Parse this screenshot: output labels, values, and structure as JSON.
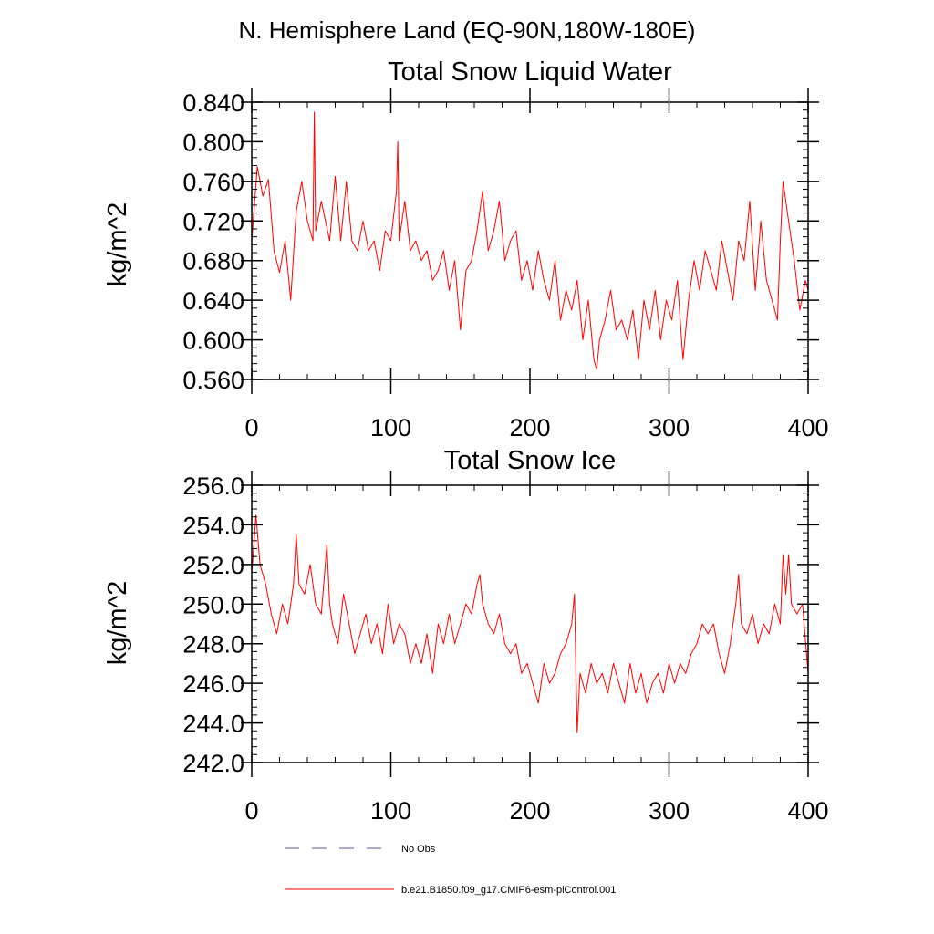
{
  "figure_title": "N. Hemisphere Land (EQ-90N,180W-180E)",
  "chart_data": [
    {
      "type": "line",
      "title": "Total Snow Liquid Water",
      "xlabel": "",
      "ylabel": "kg/m^2",
      "xlim": [
        0,
        400
      ],
      "ylim": [
        0.56,
        0.84
      ],
      "xticks": [
        0,
        100,
        200,
        300,
        400
      ],
      "yticks": [
        0.56,
        0.6,
        0.64,
        0.68,
        0.72,
        0.76,
        0.8,
        0.84
      ],
      "ytick_labels": [
        "0.560",
        "0.600",
        "0.640",
        "0.680",
        "0.720",
        "0.760",
        "0.800",
        "0.840"
      ],
      "series": [
        {
          "name": "b.e21.B1850.f09_g17.CMIP6-esm-piControl.001",
          "color": "#ff0000",
          "x": [
            0,
            4,
            8,
            12,
            16,
            20,
            24,
            28,
            32,
            36,
            40,
            44,
            45,
            46,
            50,
            56,
            60,
            64,
            68,
            72,
            76,
            80,
            84,
            88,
            92,
            96,
            100,
            104,
            105,
            106,
            110,
            114,
            118,
            122,
            126,
            130,
            134,
            138,
            142,
            146,
            150,
            154,
            158,
            162,
            166,
            170,
            174,
            178,
            182,
            186,
            190,
            194,
            198,
            202,
            206,
            210,
            214,
            218,
            222,
            226,
            230,
            234,
            238,
            242,
            246,
            248,
            250,
            254,
            258,
            262,
            266,
            270,
            274,
            278,
            282,
            286,
            290,
            294,
            298,
            302,
            306,
            310,
            314,
            318,
            322,
            326,
            330,
            334,
            338,
            342,
            346,
            350,
            354,
            358,
            362,
            366,
            370,
            374,
            378,
            380,
            382,
            386,
            390,
            394,
            398,
            400
          ],
          "values": [
            0.7,
            0.775,
            0.745,
            0.762,
            0.69,
            0.668,
            0.7,
            0.64,
            0.73,
            0.76,
            0.72,
            0.7,
            0.83,
            0.71,
            0.74,
            0.7,
            0.765,
            0.7,
            0.76,
            0.7,
            0.69,
            0.72,
            0.69,
            0.7,
            0.67,
            0.71,
            0.7,
            0.75,
            0.8,
            0.7,
            0.74,
            0.69,
            0.7,
            0.68,
            0.69,
            0.66,
            0.67,
            0.69,
            0.65,
            0.68,
            0.61,
            0.67,
            0.68,
            0.71,
            0.75,
            0.69,
            0.71,
            0.74,
            0.68,
            0.7,
            0.71,
            0.66,
            0.68,
            0.65,
            0.69,
            0.66,
            0.64,
            0.68,
            0.62,
            0.65,
            0.63,
            0.66,
            0.6,
            0.64,
            0.58,
            0.57,
            0.6,
            0.62,
            0.65,
            0.61,
            0.62,
            0.6,
            0.63,
            0.58,
            0.64,
            0.61,
            0.65,
            0.6,
            0.64,
            0.62,
            0.66,
            0.58,
            0.64,
            0.68,
            0.65,
            0.69,
            0.67,
            0.65,
            0.7,
            0.67,
            0.64,
            0.7,
            0.68,
            0.74,
            0.65,
            0.72,
            0.66,
            0.64,
            0.62,
            0.7,
            0.76,
            0.72,
            0.68,
            0.63,
            0.66,
            0.65
          ]
        }
      ]
    },
    {
      "type": "line",
      "title": "Total Snow Ice",
      "xlabel": "",
      "ylabel": "kg/m^2",
      "xlim": [
        0,
        400
      ],
      "ylim": [
        242.0,
        256.0
      ],
      "xticks": [
        0,
        100,
        200,
        300,
        400
      ],
      "yticks": [
        242,
        244,
        246,
        248,
        250,
        252,
        254,
        256
      ],
      "ytick_labels": [
        "242.0",
        "244.0",
        "246.0",
        "248.0",
        "250.0",
        "252.0",
        "254.0",
        "256.0"
      ],
      "series": [
        {
          "name": "b.e21.B1850.f09_g17.CMIP6-esm-piControl.001",
          "color": "#ff0000",
          "x": [
            0,
            3,
            6,
            10,
            14,
            18,
            22,
            26,
            30,
            32,
            34,
            38,
            42,
            46,
            50,
            54,
            56,
            58,
            62,
            66,
            70,
            74,
            78,
            82,
            86,
            90,
            94,
            98,
            102,
            106,
            110,
            114,
            118,
            122,
            126,
            130,
            134,
            138,
            142,
            146,
            150,
            154,
            158,
            162,
            164,
            166,
            170,
            174,
            178,
            182,
            186,
            190,
            194,
            198,
            202,
            206,
            210,
            214,
            218,
            222,
            226,
            230,
            232,
            234,
            236,
            240,
            244,
            248,
            252,
            256,
            260,
            264,
            268,
            272,
            276,
            280,
            284,
            288,
            292,
            296,
            300,
            304,
            308,
            312,
            316,
            320,
            324,
            328,
            332,
            336,
            340,
            344,
            348,
            350,
            352,
            356,
            360,
            364,
            368,
            372,
            376,
            380,
            382,
            384,
            386,
            388,
            392,
            396,
            400
          ],
          "values": [
            251.5,
            254.5,
            252.0,
            251.0,
            249.5,
            248.5,
            250.0,
            249.0,
            251.0,
            253.5,
            251.0,
            250.5,
            252.0,
            250.0,
            249.5,
            253.0,
            250.0,
            249.0,
            248.0,
            250.5,
            249.0,
            247.5,
            248.5,
            249.5,
            248.0,
            249.0,
            247.5,
            250.0,
            248.0,
            249.0,
            248.5,
            247.0,
            248.0,
            247.0,
            248.5,
            246.5,
            249.0,
            248.0,
            249.5,
            248.0,
            249.0,
            250.0,
            249.5,
            251.0,
            251.5,
            250.0,
            249.0,
            248.5,
            249.5,
            248.0,
            247.5,
            248.0,
            246.5,
            247.0,
            246.0,
            245.0,
            247.0,
            246.0,
            246.5,
            247.5,
            248.0,
            249.0,
            250.5,
            243.5,
            246.5,
            245.5,
            247.0,
            246.0,
            246.5,
            245.5,
            247.0,
            246.0,
            245.0,
            247.0,
            245.5,
            246.5,
            245.0,
            246.0,
            246.5,
            245.5,
            247.0,
            246.0,
            247.0,
            246.5,
            247.5,
            248.0,
            249.0,
            248.5,
            249.0,
            247.5,
            246.5,
            248.0,
            250.0,
            251.5,
            249.0,
            248.5,
            249.5,
            248.0,
            249.0,
            248.5,
            250.0,
            249.0,
            252.5,
            250.5,
            252.5,
            250.0,
            249.5,
            250.0,
            246.5
          ]
        }
      ]
    }
  ],
  "legend": [
    {
      "label": "No Obs",
      "style": "dashed",
      "color": "#5a5a9a"
    },
    {
      "label": "b.e21.B1850.f09_g17.CMIP6-esm-piControl.001",
      "style": "solid",
      "color": "#ff0000"
    }
  ]
}
